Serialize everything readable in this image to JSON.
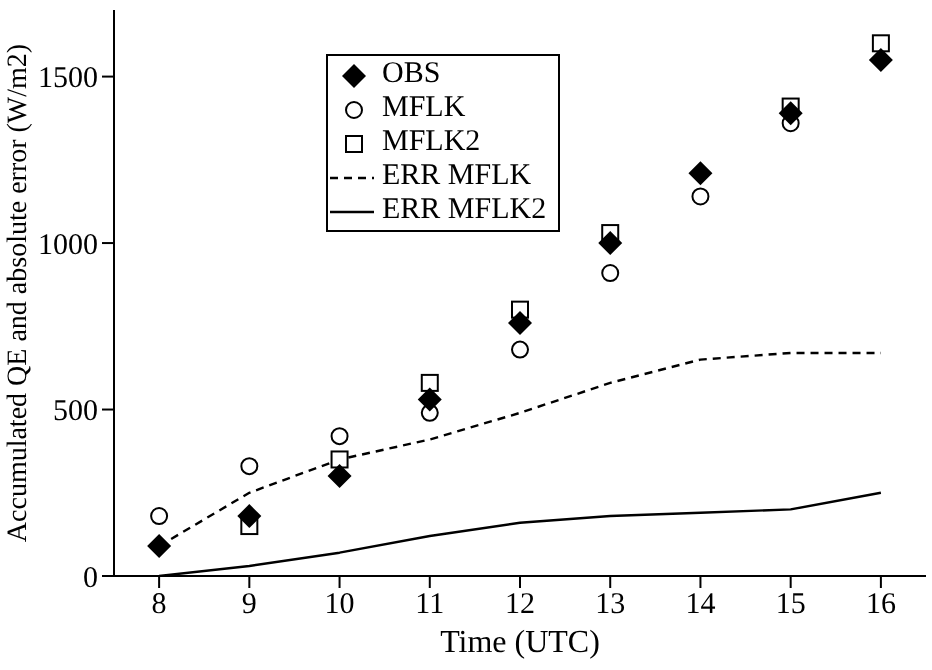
{
  "chart_data": {
    "type": "scatter",
    "xlabel": "Time (UTC)",
    "ylabel": "Accumulated QE and absolute error (W/m2)",
    "x": [
      8,
      9,
      10,
      11,
      12,
      13,
      14,
      15,
      16
    ],
    "xlim": [
      7.5,
      16.5
    ],
    "xticks": [
      8,
      9,
      10,
      11,
      12,
      13,
      14,
      15,
      16
    ],
    "ylim": [
      0,
      1700
    ],
    "yticks": [
      0,
      500,
      1000,
      1500
    ],
    "grid": false,
    "legend": "top",
    "series": [
      {
        "name": "OBS",
        "marker": "diamond",
        "color": "#000000",
        "values": [
          90,
          180,
          300,
          530,
          760,
          1000,
          1210,
          1390,
          1550
        ]
      },
      {
        "name": "MFLK",
        "marker": "circle",
        "color": "#000000",
        "values": [
          180,
          330,
          420,
          490,
          680,
          910,
          1140,
          1360,
          null
        ]
      },
      {
        "name": "MFLK2",
        "marker": "square",
        "color": "#000000",
        "values": [
          null,
          150,
          350,
          580,
          800,
          1030,
          null,
          1410,
          1600
        ]
      },
      {
        "name": "ERR MFLK",
        "type": "line",
        "marker": "none",
        "line_style": "dashed",
        "color": "#000000",
        "values": [
          90,
          250,
          350,
          410,
          490,
          580,
          650,
          670,
          670
        ]
      },
      {
        "name": "ERR MFLK2",
        "type": "line",
        "marker": "none",
        "line_style": "solid",
        "color": "#000000",
        "values": [
          0,
          30,
          70,
          120,
          160,
          180,
          190,
          200,
          250
        ]
      }
    ]
  }
}
